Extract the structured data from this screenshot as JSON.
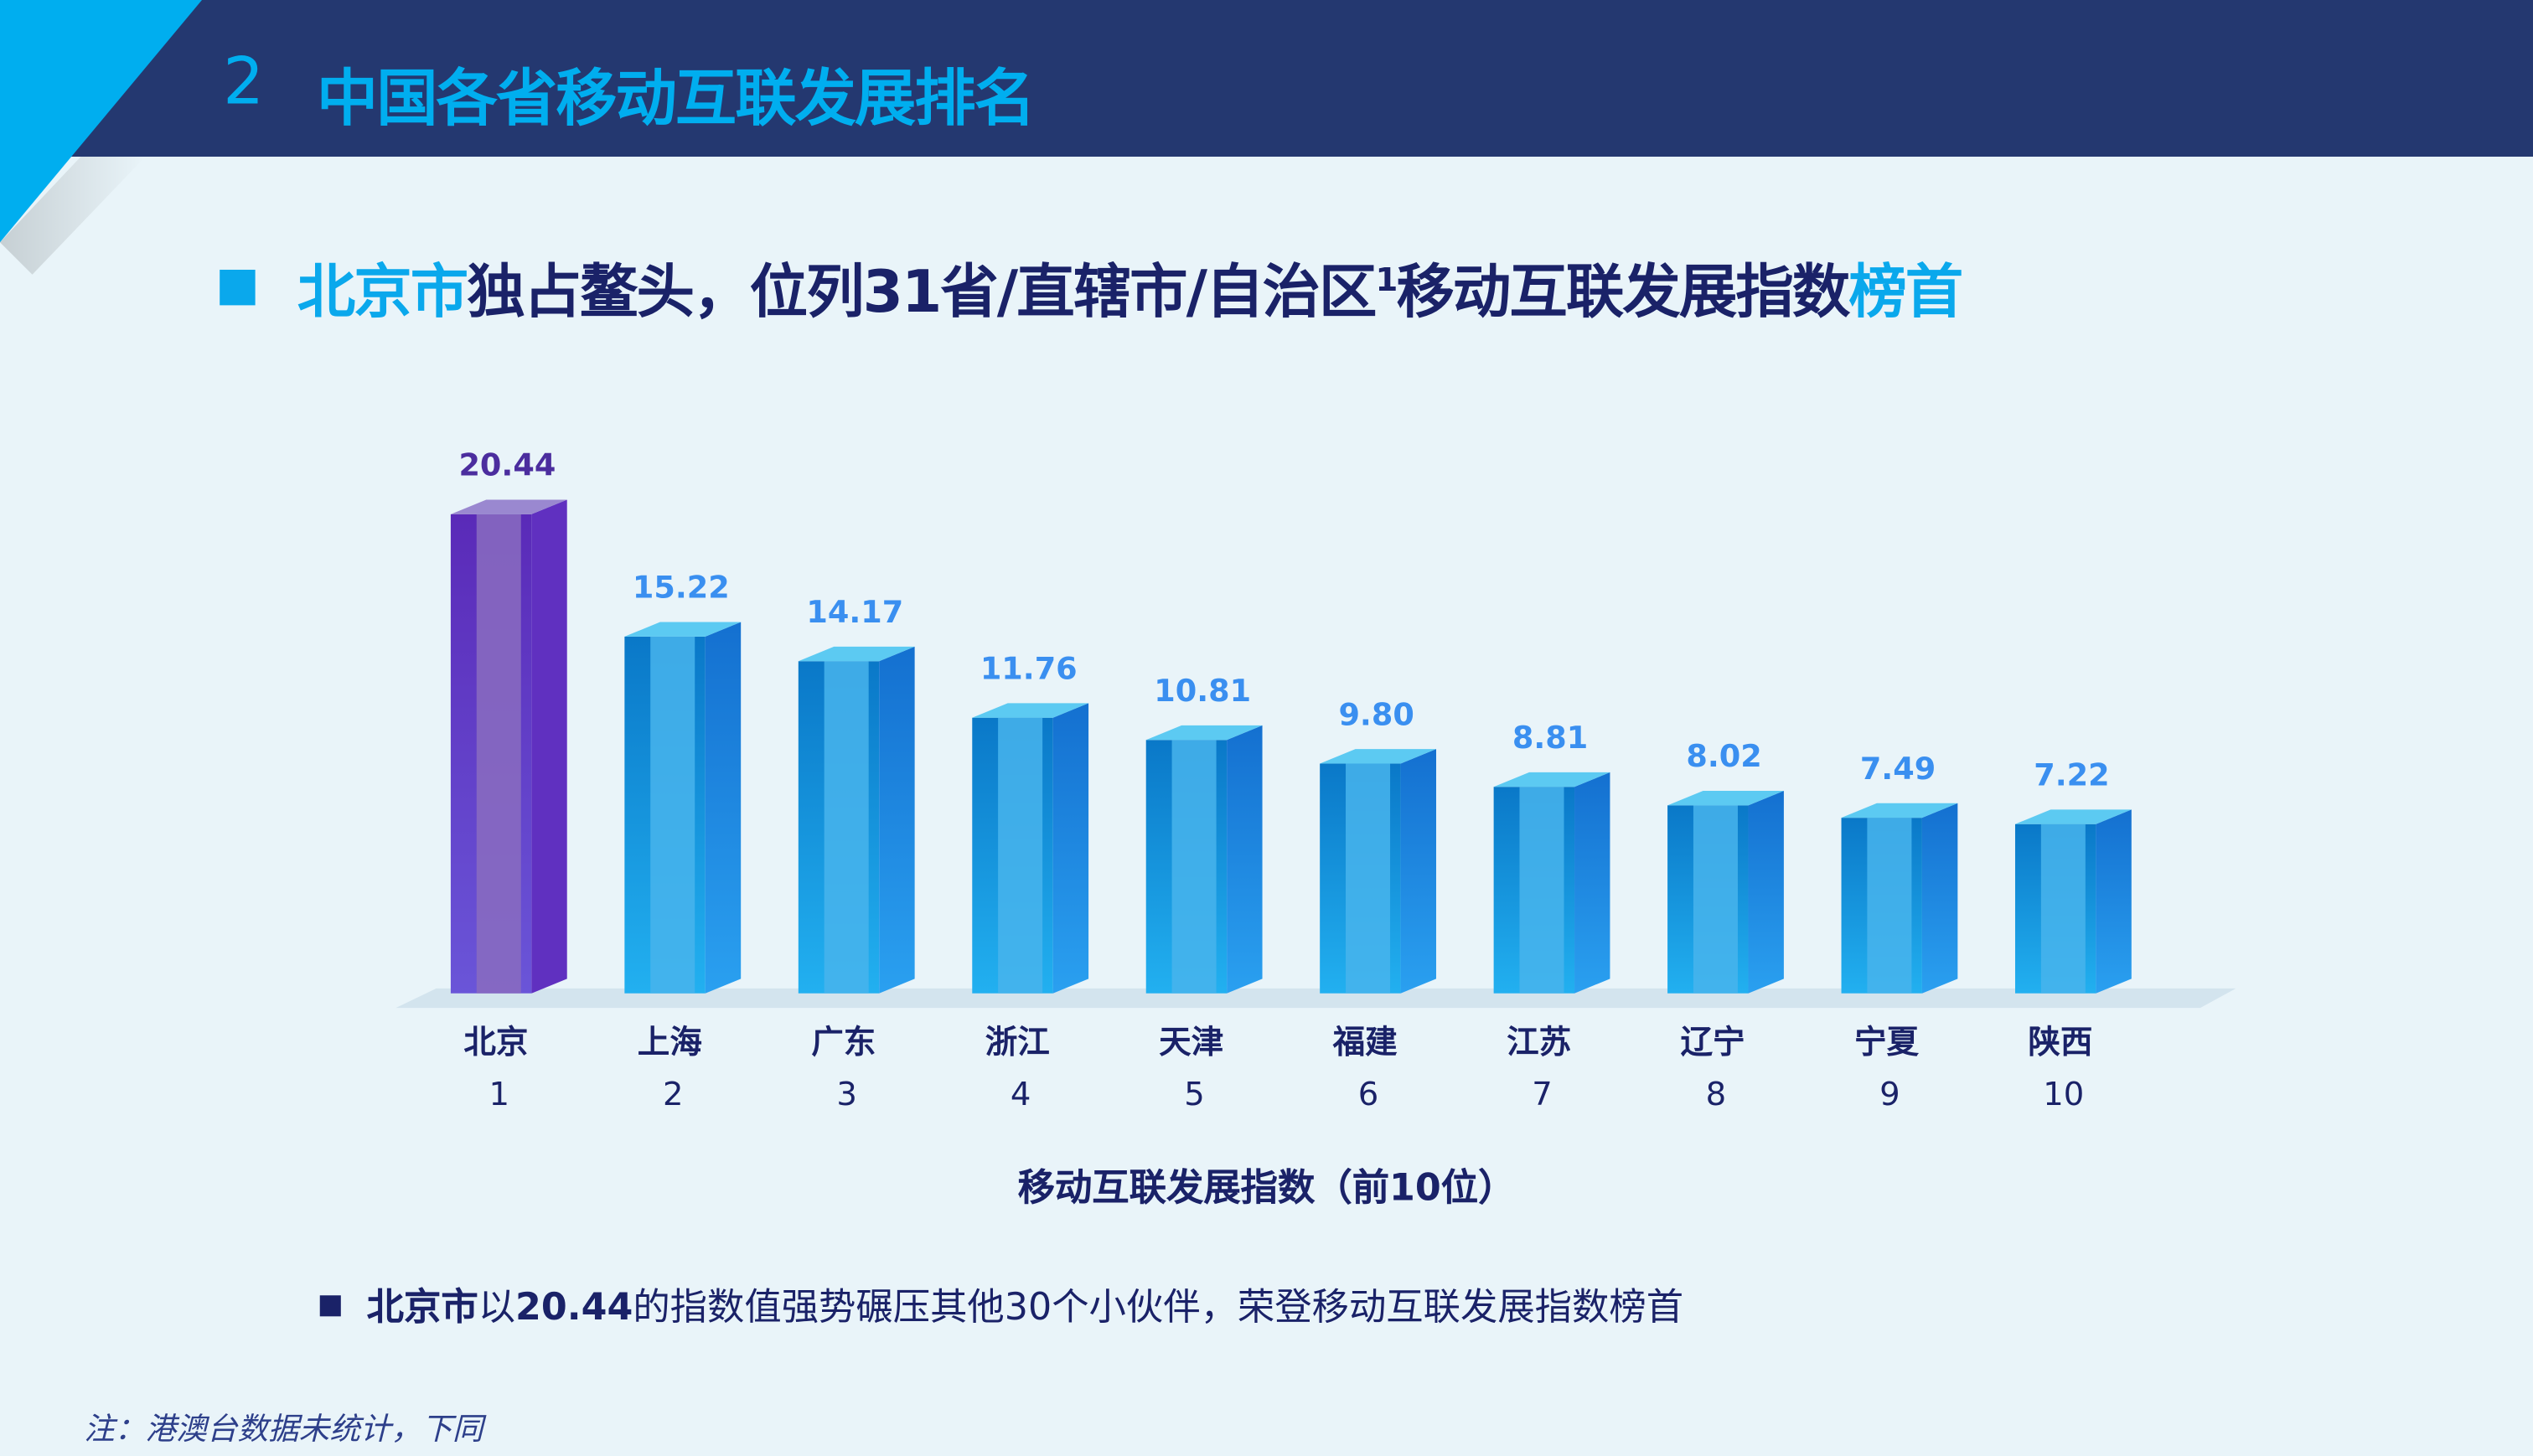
{
  "header": {
    "number": "2",
    "title": "中国各省移动互联发展排名"
  },
  "headline": {
    "part1": "北京市",
    "part2": "独占鳌头，位列31省/直辖市/自治区",
    "sup": "1",
    "part3": "移动互联发展指数",
    "part4": "榜首"
  },
  "bullet": {
    "bold": "北京市",
    "text1": "以",
    "value": "20.44",
    "text2": "的指数值强势碾压其他30个小伙伴，荣登移动互联发展指数榜首"
  },
  "note": "注：港澳台数据未统计，下同",
  "colors": {
    "header_bg": "#243870",
    "accent": "#00aeef",
    "text": "#1a2268",
    "highlight_bar": "#6a3fc4",
    "bar": "#1e9be4",
    "label_blue": "#3a8ff0",
    "label_purple": "#4b2d9e"
  },
  "chart_data": {
    "type": "bar",
    "style": "3d-cylinder",
    "title": "",
    "xlabel": "移动互联发展指数（前10位）",
    "ylabel": "",
    "categories": [
      "北京",
      "上海",
      "广东",
      "浙江",
      "天津",
      "福建",
      "江苏",
      "辽宁",
      "宁夏",
      "陕西"
    ],
    "ranks": [
      "1",
      "2",
      "3",
      "4",
      "5",
      "6",
      "7",
      "8",
      "9",
      "10"
    ],
    "values": [
      20.44,
      15.22,
      14.17,
      11.76,
      10.81,
      9.8,
      8.81,
      8.02,
      7.49,
      7.22
    ],
    "value_labels": [
      "20.44",
      "15.22",
      "14.17",
      "11.76",
      "10.81",
      "9.80",
      "8.81",
      "8.02",
      "7.49",
      "7.22"
    ],
    "ylim": [
      0,
      21.5
    ],
    "grid": false,
    "highlighted_category": "北京"
  }
}
